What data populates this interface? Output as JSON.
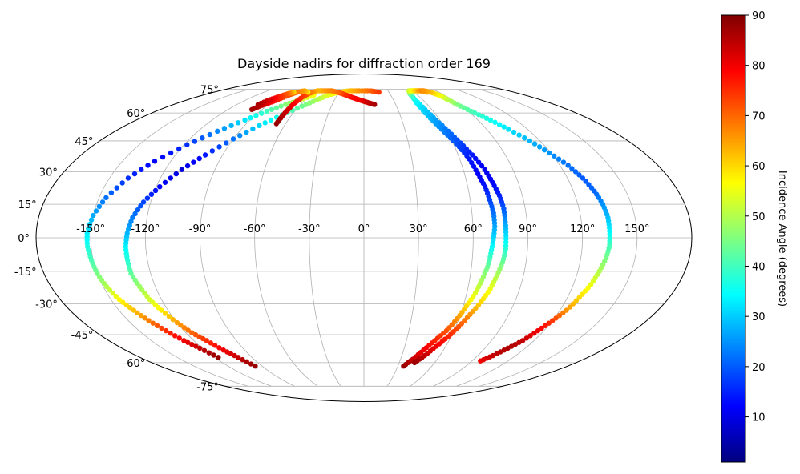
{
  "chart_data": {
    "type": "scatter",
    "projection": "mollweide",
    "title": "Dayside nadirs for diffraction order 169",
    "longitude_ticks": [
      -150,
      -120,
      -90,
      -60,
      -30,
      0,
      30,
      60,
      90,
      120,
      150
    ],
    "longitude_tick_labels": [
      "-150°",
      "-120°",
      "-90°",
      "-60°",
      "-30°",
      "0°",
      "30°",
      "60°",
      "90°",
      "120°",
      "150°"
    ],
    "latitude_ticks": [
      75,
      60,
      45,
      30,
      15,
      0,
      -15,
      -30,
      -45,
      -60,
      -75
    ],
    "latitude_tick_labels": [
      "75°",
      "60°",
      "45°",
      "30°",
      "15°",
      "0°",
      "-15°",
      "-30°",
      "-45°",
      "-60°",
      "-75°"
    ],
    "grid": true,
    "colorbar": {
      "label": "Incidence Angle (degrees)",
      "colormap": "jet",
      "range": [
        1,
        90
      ],
      "ticks": [
        10,
        20,
        30,
        40,
        50,
        60,
        70,
        80,
        90
      ],
      "tick_labels": [
        "10",
        "20",
        "30",
        "40",
        "50",
        "60",
        "70",
        "80",
        "90"
      ],
      "position": "right"
    },
    "tracks": [
      {
        "points": [
          [
            -117,
            -57,
            88
          ],
          [
            -122,
            -52,
            84
          ],
          [
            -127,
            -48,
            80
          ],
          [
            -132,
            -43,
            75
          ],
          [
            -137,
            -38,
            68
          ],
          [
            -141,
            -33,
            62
          ],
          [
            -145,
            -28,
            57
          ],
          [
            -148,
            -22,
            50
          ],
          [
            -150,
            -16,
            45
          ],
          [
            -151,
            -10,
            41
          ],
          [
            -152,
            -4,
            37
          ],
          [
            -152,
            2,
            33
          ],
          [
            -150,
            10,
            27
          ],
          [
            -146,
            18,
            22
          ],
          [
            -139,
            27,
            16
          ],
          [
            -130,
            35,
            12
          ],
          [
            -118,
            43,
            16
          ],
          [
            -106,
            50,
            24
          ],
          [
            -94,
            56,
            32
          ],
          [
            -84,
            61,
            40
          ],
          [
            -74,
            65,
            46
          ],
          [
            -65,
            68,
            52
          ],
          [
            -56,
            71,
            56
          ]
        ]
      },
      {
        "points": [
          [
            -96,
            -62,
            88
          ],
          [
            -101,
            -57,
            84
          ],
          [
            -106,
            -53,
            80
          ],
          [
            -111,
            -48,
            75
          ],
          [
            -116,
            -44,
            70
          ],
          [
            -120,
            -39,
            65
          ],
          [
            -124,
            -33,
            58
          ],
          [
            -127,
            -28,
            53
          ],
          [
            -129,
            -22,
            48
          ],
          [
            -131,
            -16,
            43
          ],
          [
            -131,
            -10,
            38
          ],
          [
            -131,
            -4,
            34
          ],
          [
            -130,
            2,
            28
          ],
          [
            -128,
            9,
            23
          ],
          [
            -124,
            16,
            18
          ],
          [
            -118,
            23,
            12
          ],
          [
            -110,
            31,
            9
          ],
          [
            -101,
            38,
            14
          ],
          [
            -90,
            46,
            22
          ],
          [
            -79,
            53,
            31
          ],
          [
            -68,
            59,
            38
          ],
          [
            -57,
            64,
            44
          ],
          [
            -48,
            68,
            49
          ],
          [
            -40,
            71,
            54
          ],
          [
            -30,
            73,
            58
          ],
          [
            -18,
            74,
            62
          ],
          [
            -6,
            74,
            66
          ],
          [
            8,
            74,
            70
          ],
          [
            18,
            73,
            74
          ]
        ]
      },
      {
        "points": [
          [
            10,
            65,
            87
          ],
          [
            5,
            66,
            85
          ],
          [
            0,
            67,
            83
          ],
          [
            -5,
            68,
            80
          ],
          [
            -10,
            69,
            79
          ],
          [
            -15,
            70,
            78
          ],
          [
            -20,
            71,
            76
          ],
          [
            -25,
            72,
            74
          ],
          [
            -32,
            73,
            70
          ],
          [
            -40,
            74,
            68
          ],
          [
            -50,
            74,
            66
          ],
          [
            -58,
            74,
            63
          ],
          [
            -64,
            72,
            70
          ],
          [
            -66,
            70,
            74
          ],
          [
            -67,
            66,
            78
          ],
          [
            -67,
            62,
            82
          ],
          [
            -67,
            58,
            85
          ],
          [
            -67,
            54,
            88
          ]
        ]
      },
      {
        "points": [
          [
            -67,
            73,
            58
          ],
          [
            -74,
            74,
            64
          ],
          [
            -80,
            73,
            68
          ],
          [
            -84,
            71,
            72
          ],
          [
            -88,
            68,
            76
          ],
          [
            -92,
            66,
            80
          ],
          [
            -96,
            64,
            84
          ],
          [
            -99,
            62,
            87
          ]
        ]
      },
      {
        "points": [
          [
            -84,
            73,
            60
          ],
          [
            -88,
            72,
            70
          ],
          [
            -92,
            70,
            76
          ],
          [
            -96,
            68,
            82
          ],
          [
            -100,
            65,
            86
          ]
        ]
      },
      {
        "points": [
          [
            35,
            -62,
            88
          ],
          [
            40,
            -58,
            84
          ],
          [
            45,
            -53,
            80
          ],
          [
            50,
            -48,
            76
          ],
          [
            55,
            -43,
            72
          ],
          [
            59,
            -37,
            66
          ],
          [
            62,
            -31,
            60
          ],
          [
            65,
            -25,
            54
          ],
          [
            67,
            -19,
            49
          ],
          [
            69,
            -13,
            44
          ],
          [
            70,
            -7,
            38
          ],
          [
            71,
            -1,
            32
          ],
          [
            72,
            5,
            27
          ],
          [
            72,
            11,
            22
          ],
          [
            71,
            17,
            18
          ],
          [
            70,
            23,
            14
          ],
          [
            68,
            29,
            12
          ],
          [
            66,
            36,
            14
          ],
          [
            63,
            42,
            18
          ],
          [
            59,
            48,
            22
          ],
          [
            55,
            54,
            26
          ],
          [
            52,
            60,
            30
          ],
          [
            51,
            66,
            34
          ],
          [
            53,
            71,
            40
          ],
          [
            58,
            74,
            50
          ],
          [
            64,
            74,
            56
          ],
          [
            70,
            74,
            62
          ],
          [
            76,
            73,
            66
          ]
        ]
      },
      {
        "points": [
          [
            43,
            -60,
            88
          ],
          [
            48,
            -56,
            84
          ],
          [
            53,
            -51,
            80
          ],
          [
            58,
            -46,
            76
          ],
          [
            62,
            -41,
            72
          ],
          [
            66,
            -35,
            66
          ],
          [
            70,
            -29,
            60
          ],
          [
            73,
            -23,
            55
          ],
          [
            75,
            -17,
            50
          ],
          [
            77,
            -11,
            44
          ],
          [
            78,
            -5,
            38
          ],
          [
            78,
            1,
            32
          ],
          [
            78,
            7,
            26
          ],
          [
            78,
            13,
            20
          ],
          [
            77,
            19,
            15
          ],
          [
            75,
            25,
            12
          ],
          [
            73,
            31,
            11
          ],
          [
            69,
            38,
            14
          ],
          [
            65,
            44,
            18
          ],
          [
            61,
            50,
            22
          ],
          [
            57,
            56,
            26
          ],
          [
            54,
            62,
            30
          ],
          [
            52,
            68,
            35
          ],
          [
            53,
            72,
            42
          ],
          [
            56,
            74,
            52
          ],
          [
            62,
            74,
            58
          ],
          [
            68,
            74,
            64
          ],
          [
            74,
            74,
            68
          ],
          [
            80,
            73,
            72
          ]
        ]
      },
      {
        "points": [
          [
            97,
            -59,
            80
          ],
          [
            102,
            -56,
            84
          ],
          [
            107,
            -52,
            86
          ],
          [
            112,
            -48,
            84
          ],
          [
            116,
            -43,
            80
          ],
          [
            120,
            -38,
            74
          ],
          [
            124,
            -33,
            66
          ],
          [
            127,
            -27,
            60
          ],
          [
            130,
            -21,
            55
          ],
          [
            132,
            -15,
            50
          ],
          [
            134,
            -9,
            45
          ],
          [
            135,
            -3,
            40
          ],
          [
            135,
            3,
            34
          ],
          [
            135,
            9,
            29
          ],
          [
            134,
            15,
            25
          ],
          [
            132,
            21,
            21
          ],
          [
            129,
            27,
            20
          ],
          [
            125,
            33,
            22
          ],
          [
            119,
            39,
            25
          ],
          [
            113,
            45,
            28
          ],
          [
            106,
            51,
            32
          ],
          [
            100,
            56,
            36
          ],
          [
            94,
            60,
            40
          ],
          [
            89,
            64,
            44
          ],
          [
            86,
            68,
            50
          ],
          [
            84,
            71,
            56
          ],
          [
            80,
            73,
            62
          ],
          [
            74,
            74,
            66
          ]
        ]
      }
    ]
  }
}
